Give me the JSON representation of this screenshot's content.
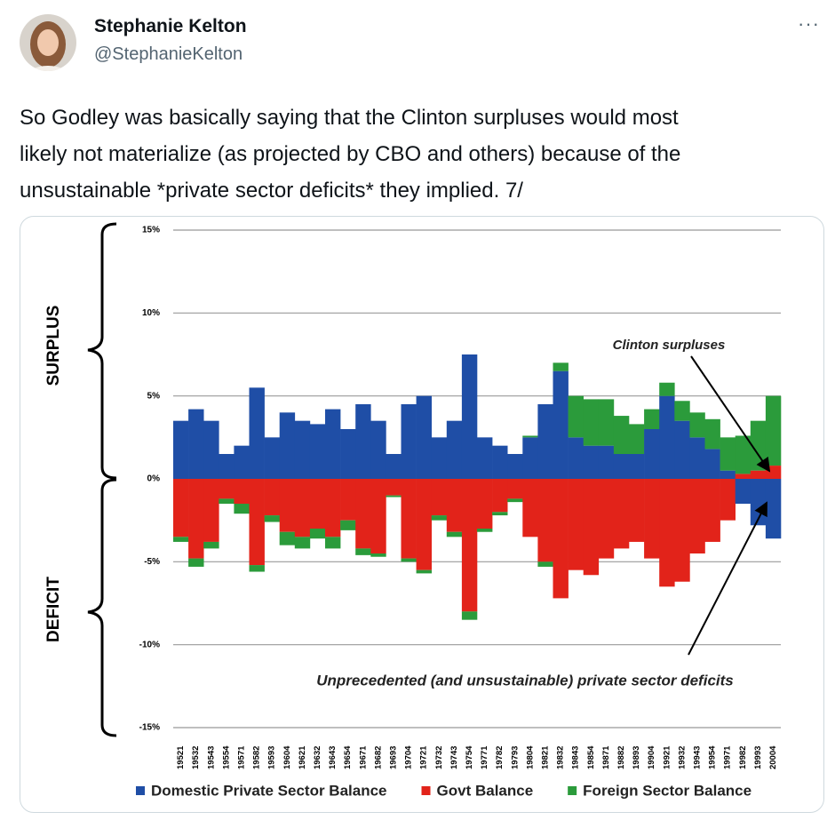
{
  "tweet": {
    "name": "Stephanie Kelton",
    "handle": "@StephanieKelton",
    "text_lines": [
      "So Godley was basically saying that the Clinton surpluses would most",
      "likely not materialize (as projected by CBO and others) because of the",
      "unsustainable *private sector deficits* they implied. 7/"
    ]
  },
  "chart_data": {
    "type": "bar",
    "stacked": true,
    "label_surplus": "SURPLUS",
    "label_deficit": "DEFICIT",
    "annotations": [
      "Clinton surpluses",
      "Unprecedented (and unsustainable) private sector deficits"
    ],
    "categories": [
      "19521",
      "19532",
      "19543",
      "19554",
      "19571",
      "19582",
      "19593",
      "19604",
      "19621",
      "19632",
      "19643",
      "19654",
      "19671",
      "19682",
      "19693",
      "19704",
      "19721",
      "19732",
      "19743",
      "19754",
      "19771",
      "19782",
      "19793",
      "19804",
      "19821",
      "19832",
      "19843",
      "19854",
      "19871",
      "19882",
      "19893",
      "19904",
      "19921",
      "19932",
      "19943",
      "19954",
      "19971",
      "19982",
      "19993",
      "20004"
    ],
    "series": [
      {
        "name": "Domestic Private Sector Balance",
        "color": "#1f4ea6",
        "values": [
          3.5,
          4.2,
          3.5,
          1.5,
          2,
          5.5,
          2.5,
          4,
          3.5,
          3.3,
          4.2,
          3,
          4.5,
          3.5,
          1.5,
          4.5,
          5,
          2.5,
          3.5,
          7.5,
          2.5,
          2,
          1.5,
          2.5,
          4.5,
          6.5,
          2.5,
          2,
          2,
          1.5,
          1.5,
          3,
          5,
          3.5,
          2.5,
          1.8,
          0.5,
          -1.5,
          -2.8,
          -3.6
        ]
      },
      {
        "name": "Govt Balance",
        "color": "#e2231a",
        "values": [
          -3.5,
          -4.8,
          -3.8,
          -1.2,
          -1.5,
          -5.2,
          -2.2,
          -3.2,
          -3.5,
          -3,
          -3.5,
          -2.5,
          -4.2,
          -4.5,
          -1,
          -4.8,
          -5.5,
          -2.2,
          -3.2,
          -8,
          -3,
          -2,
          -1.2,
          -3.5,
          -5,
          -7.2,
          -5.5,
          -5.8,
          -4.8,
          -4.2,
          -3.8,
          -4.8,
          -6.5,
          -6.2,
          -4.5,
          -3.8,
          -2.5,
          0.3,
          0.5,
          0.8
        ]
      },
      {
        "name": "Foreign Sector Balance",
        "color": "#2b9b3b",
        "values": [
          -0.3,
          -0.5,
          -0.4,
          -0.3,
          -0.6,
          -0.4,
          -0.4,
          -0.8,
          -0.7,
          -0.6,
          -0.7,
          -0.6,
          -0.4,
          -0.2,
          -0.1,
          -0.2,
          -0.2,
          -0.3,
          -0.3,
          -0.5,
          -0.2,
          -0.2,
          -0.2,
          0.1,
          -0.3,
          0.5,
          2.5,
          2.8,
          2.8,
          2.3,
          1.8,
          1.2,
          0.8,
          1.2,
          1.5,
          1.8,
          2,
          2.3,
          3,
          4.2
        ]
      }
    ],
    "ylim": [
      -15,
      15
    ],
    "yticks": [
      {
        "value": -15,
        "label": "-15%"
      },
      {
        "value": -10,
        "label": "-10%"
      },
      {
        "value": -5,
        "label": "-5%"
      },
      {
        "value": 0,
        "label": "0%"
      },
      {
        "value": 5,
        "label": "5%"
      },
      {
        "value": 10,
        "label": "10%"
      },
      {
        "value": 15,
        "label": "15%"
      }
    ],
    "grid": true
  }
}
